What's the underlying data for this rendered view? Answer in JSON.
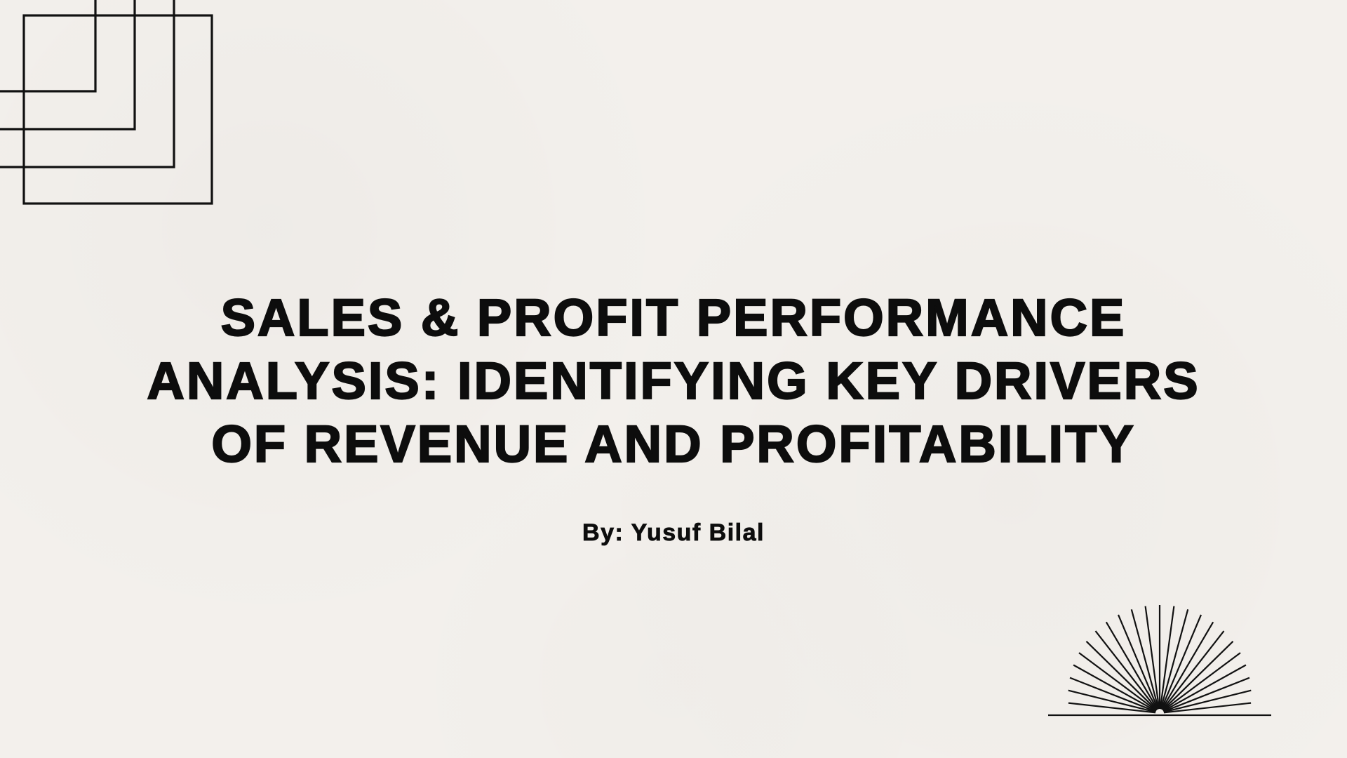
{
  "slide": {
    "title_lines": [
      "SALES & PROFIT PERFORMANCE",
      "ANALYSIS: IDENTIFYING KEY DRIVERS",
      "OF REVENUE AND PROFITABILITY"
    ],
    "byline": "By: Yusuf Bilal"
  },
  "colors": {
    "background": "#f3f0ec",
    "text": "#0d0d0d",
    "line_art": "#111111"
  },
  "decorations": {
    "top_left": "nested-squares-icon",
    "bottom_right": "sunburst-icon"
  }
}
